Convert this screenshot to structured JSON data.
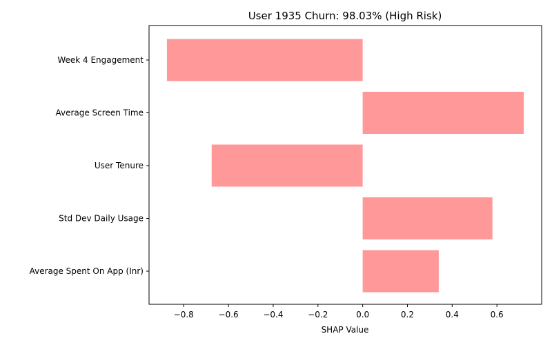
{
  "chart_data": {
    "type": "bar",
    "orientation": "horizontal",
    "title": "User 1935 Churn: 98.03% (High Risk)",
    "xlabel": "SHAP Value",
    "ylabel": "",
    "categories": [
      "Week 4 Engagement",
      "Average Screen Time",
      "User Tenure",
      "Std Dev Daily Usage",
      "Average Spent On App (Inr)"
    ],
    "values": [
      -0.875,
      0.72,
      -0.675,
      0.58,
      0.34
    ],
    "xlim": [
      -0.955,
      0.8
    ],
    "xticks": [
      -0.8,
      -0.6,
      -0.4,
      -0.2,
      0.0,
      0.2,
      0.4,
      0.6
    ],
    "xtick_labels": [
      "−0.8",
      "−0.6",
      "−0.4",
      "−0.2",
      "0.0",
      "0.2",
      "0.4",
      "0.6"
    ],
    "bar_color": "#ff9999",
    "grid": false,
    "legend": "none"
  }
}
